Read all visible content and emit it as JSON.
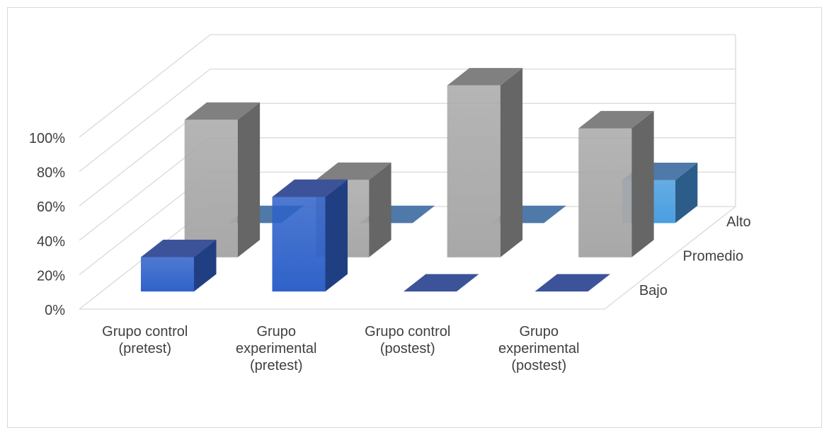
{
  "chart_data": {
    "type": "bar",
    "style": "3d-column",
    "title": "",
    "xlabel": "",
    "ylabel": "",
    "ylim": [
      0,
      100
    ],
    "y_ticks": [
      "0%",
      "20%",
      "40%",
      "60%",
      "80%",
      "100%"
    ],
    "grid": true,
    "categories": [
      [
        "Grupo control",
        "(pretest)"
      ],
      [
        "Grupo",
        "experimental",
        "(pretest)"
      ],
      [
        "Grupo control",
        "(postest)"
      ],
      [
        "Grupo",
        "experimental",
        "(postest)"
      ]
    ],
    "series": [
      {
        "name": "Bajo",
        "values": [
          20,
          55,
          0,
          0
        ]
      },
      {
        "name": "Promedio",
        "values": [
          80,
          45,
          100,
          75
        ]
      },
      {
        "name": "Alto",
        "values": [
          0,
          0,
          0,
          25
        ]
      }
    ],
    "colors": {
      "Bajo": {
        "front": "#2f62c9",
        "side": "#203f82",
        "top": "#3c5399"
      },
      "Promedio": {
        "front": "#a8a8a8",
        "side": "#666666",
        "top": "#808080"
      },
      "Alto": {
        "front": "#4a9ee0",
        "side": "#2c5d8a",
        "top": "#4f79a8"
      }
    }
  }
}
